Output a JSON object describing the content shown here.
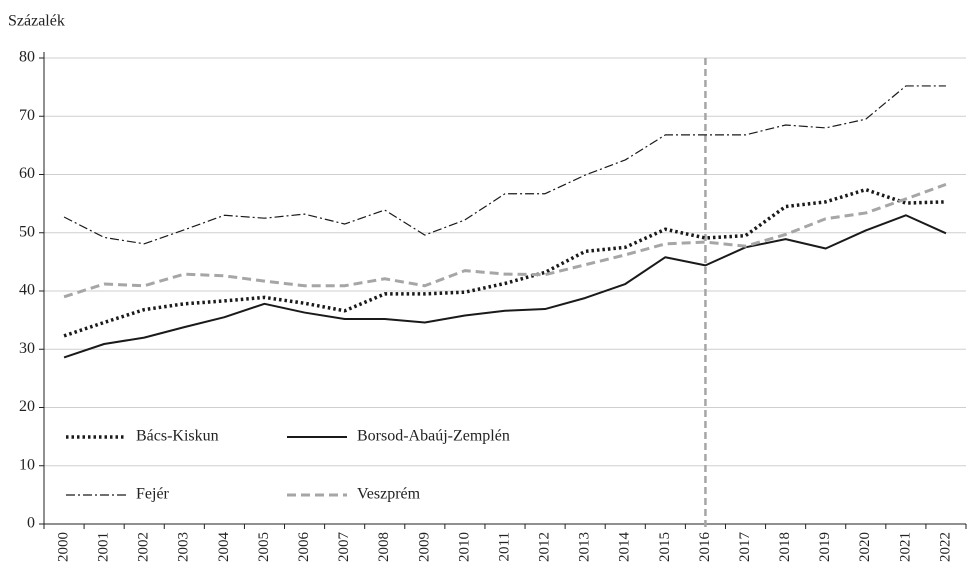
{
  "chart_data": {
    "type": "line",
    "y_label": "Százalék",
    "categories": [
      "2000",
      "2001",
      "2002",
      "2003",
      "2004",
      "2005",
      "2006",
      "2007",
      "2008",
      "2009",
      "2010",
      "2011",
      "2012",
      "2013",
      "2014",
      "2015",
      "2016",
      "2017",
      "2018",
      "2019",
      "2020",
      "2021",
      "2022"
    ],
    "series": [
      {
        "name": "Bács-Kiskun",
        "color": "#1a1a1a",
        "style": "dotted",
        "values": [
          32.3,
          34.6,
          36.8,
          37.8,
          38.3,
          38.9,
          37.9,
          36.6,
          39.5,
          39.5,
          39.8,
          41.3,
          43.2,
          46.8,
          47.5,
          50.6,
          49.1,
          49.5,
          54.5,
          55.3,
          57.4,
          55.1,
          55.3
        ]
      },
      {
        "name": "Borsod-Abaúj-Zemplén",
        "color": "#1a1a1a",
        "style": "solid",
        "values": [
          28.6,
          30.9,
          32.0,
          33.8,
          35.5,
          37.8,
          36.3,
          35.2,
          35.2,
          34.6,
          35.8,
          36.6,
          36.9,
          38.8,
          41.2,
          45.8,
          44.4,
          47.5,
          48.9,
          47.3,
          50.4,
          53.0,
          49.9
        ]
      },
      {
        "name": "Fejér",
        "color": "#1a1a1a",
        "style": "dashdot",
        "values": [
          52.7,
          49.2,
          48.1,
          50.5,
          53.0,
          52.5,
          53.2,
          51.5,
          53.9,
          49.6,
          52.2,
          56.7,
          56.7,
          59.9,
          62.5,
          66.8,
          66.8,
          66.8,
          68.5,
          68.0,
          69.5,
          75.2,
          75.2
        ]
      },
      {
        "name": "Veszprém",
        "color": "#a6a6a6",
        "style": "dashed",
        "values": [
          39.0,
          41.2,
          40.9,
          42.9,
          42.6,
          41.7,
          40.9,
          40.9,
          42.1,
          40.9,
          43.5,
          42.9,
          42.8,
          44.5,
          46.2,
          48.1,
          48.4,
          47.7,
          49.7,
          52.4,
          53.4,
          55.8,
          58.3
        ]
      }
    ],
    "vline": "2016",
    "ylim": [
      0,
      80
    ],
    "yticks": [
      0,
      10,
      20,
      30,
      40,
      50,
      60,
      70,
      80
    ],
    "grid": true
  }
}
